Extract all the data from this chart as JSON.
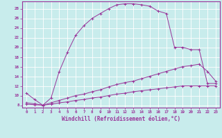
{
  "xlabel": "Windchill (Refroidissement éolien,°C)",
  "bg_color": "#c8ecec",
  "grid_color": "#ffffff",
  "line_color": "#993399",
  "xlim": [
    -0.5,
    23.5
  ],
  "ylim": [
    7.5,
    29.5
  ],
  "xticks": [
    0,
    1,
    2,
    3,
    4,
    5,
    6,
    7,
    8,
    9,
    10,
    11,
    12,
    13,
    14,
    15,
    16,
    17,
    18,
    19,
    20,
    21,
    22,
    23
  ],
  "yticks": [
    8,
    10,
    12,
    14,
    16,
    18,
    20,
    22,
    24,
    26,
    28
  ],
  "line1_x": [
    0,
    1,
    2,
    3,
    4,
    5,
    6,
    7,
    8,
    9,
    10,
    11,
    12,
    13,
    14,
    15,
    16,
    17,
    18,
    19,
    20,
    21,
    22,
    23
  ],
  "line1_y": [
    10.5,
    9.2,
    8.0,
    9.5,
    15.0,
    19.0,
    22.5,
    24.5,
    26.0,
    27.0,
    28.0,
    28.8,
    29.0,
    29.0,
    28.8,
    28.5,
    27.5,
    27.0,
    20.0,
    20.0,
    19.5,
    19.5,
    12.5,
    12.5
  ],
  "line2_x": [
    0,
    1,
    2,
    3,
    4,
    5,
    6,
    7,
    8,
    9,
    10,
    11,
    12,
    13,
    14,
    15,
    16,
    17,
    18,
    19,
    20,
    21,
    22,
    23
  ],
  "line2_y": [
    8.5,
    8.3,
    8.0,
    8.5,
    9.0,
    9.5,
    10.0,
    10.3,
    10.8,
    11.2,
    11.8,
    12.3,
    12.7,
    13.0,
    13.5,
    14.0,
    14.5,
    15.0,
    15.5,
    16.0,
    16.2,
    16.5,
    15.0,
    13.0
  ],
  "line3_x": [
    0,
    1,
    2,
    3,
    4,
    5,
    6,
    7,
    8,
    9,
    10,
    11,
    12,
    13,
    14,
    15,
    16,
    17,
    18,
    19,
    20,
    21,
    22,
    23
  ],
  "line3_y": [
    8.2,
    8.1,
    8.0,
    8.2,
    8.5,
    8.7,
    9.0,
    9.2,
    9.5,
    9.7,
    10.0,
    10.3,
    10.5,
    10.8,
    11.0,
    11.2,
    11.4,
    11.6,
    11.8,
    12.0,
    12.0,
    12.0,
    12.0,
    12.0
  ],
  "xlabel_fontsize": 5.5,
  "tick_fontsize": 4.2,
  "linewidth": 0.7,
  "marker_size": 2.5
}
